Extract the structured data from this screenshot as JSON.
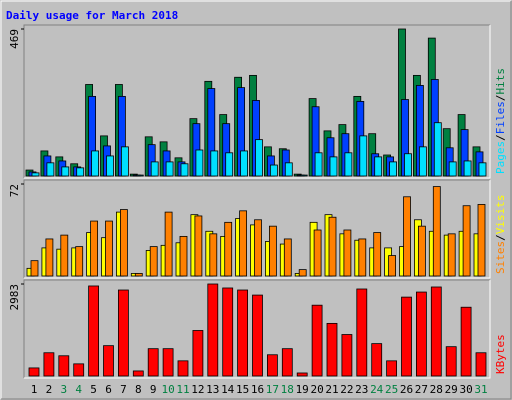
{
  "chart_data": {
    "type": "bar",
    "title": "Daily usage for March 2018",
    "title_color": "#0000ff",
    "legend_separator": "/",
    "categories": [
      "1",
      "2",
      "3",
      "4",
      "5",
      "6",
      "7",
      "8",
      "9",
      "10",
      "11",
      "12",
      "13",
      "14",
      "15",
      "16",
      "17",
      "18",
      "19",
      "20",
      "21",
      "22",
      "23",
      "24",
      "25",
      "26",
      "27",
      "28",
      "29",
      "30",
      "31"
    ],
    "category_colors": [
      "#000000",
      "#000000",
      "#008040",
      "#008040",
      "#000000",
      "#000000",
      "#000000",
      "#000000",
      "#000000",
      "#008040",
      "#008040",
      "#000000",
      "#000000",
      "#000000",
      "#000000",
      "#000000",
      "#008040",
      "#008040",
      "#000000",
      "#000000",
      "#000000",
      "#000000",
      "#000000",
      "#008040",
      "#008040",
      "#000000",
      "#000000",
      "#000000",
      "#000000",
      "#000000",
      "#008040"
    ],
    "panels": [
      {
        "ylim": [
          0,
          469
        ],
        "yticks": [
          469
        ],
        "series": [
          {
            "name": "Hits",
            "color": "#008040",
            "values": [
              19,
              80,
              61,
              39,
              292,
              128,
              292,
              6,
              125,
              109,
              58,
              183,
              302,
              196,
              315,
              321,
              93,
              87,
              6,
              247,
              144,
              164,
              254,
              135,
              67,
              469,
              321,
              440,
              151,
              196,
              93
            ]
          },
          {
            "name": "Files",
            "color": "#0040ff",
            "values": [
              13,
              64,
              48,
              29,
              254,
              96,
              254,
              3,
              100,
              80,
              45,
              167,
              279,
              167,
              282,
              241,
              64,
              83,
              3,
              221,
              122,
              135,
              238,
              71,
              61,
              244,
              289,
              308,
              90,
              148,
              77
            ]
          },
          {
            "name": "Pages",
            "color": "#00e0ff",
            "values": [
              10,
              42,
              29,
              26,
              80,
              64,
              93,
              3,
              45,
              45,
              39,
              83,
              80,
              74,
              80,
              116,
              35,
              42,
              3,
              74,
              61,
              74,
              128,
              61,
              45,
              71,
              93,
              170,
              45,
              48,
              42
            ]
          }
        ]
      },
      {
        "ylim": [
          0,
          72
        ],
        "yticks": [
          72
        ],
        "series": [
          {
            "name": "Visits",
            "color": "#ffff00",
            "values": [
              6,
              22,
              21,
              22,
              34,
              30,
              50,
              2,
              20,
              24,
              26,
              48,
              35,
              31,
              45,
              40,
              27,
              25,
              2,
              42,
              48,
              33,
              28,
              22,
              22,
              23,
              44,
              35,
              32,
              35,
              33
            ]
          },
          {
            "name": "Sites",
            "color": "#ff8000",
            "values": [
              12,
              29,
              32,
              23,
              43,
              43,
              52,
              2,
              23,
              50,
              31,
              47,
              33,
              42,
              51,
              44,
              39,
              29,
              5,
              36,
              46,
              36,
              29,
              34,
              16,
              62,
              39,
              70,
              33,
              55,
              56
            ]
          }
        ]
      },
      {
        "ylim": [
          0,
          2983
        ],
        "yticks": [
          2983
        ],
        "series": [
          {
            "name": "KBytes",
            "color": "#ff0000",
            "values": [
              262,
              754,
              656,
              394,
              2919,
              984,
              2788,
              164,
              886,
              886,
              492,
              1476,
              2983,
              2854,
              2788,
              2624,
              689,
              886,
              98,
              2296,
              1706,
              1345,
              2821,
              1050,
              492,
              2558,
              2722,
              2886,
              951,
              2230,
              754
            ]
          }
        ]
      }
    ]
  }
}
